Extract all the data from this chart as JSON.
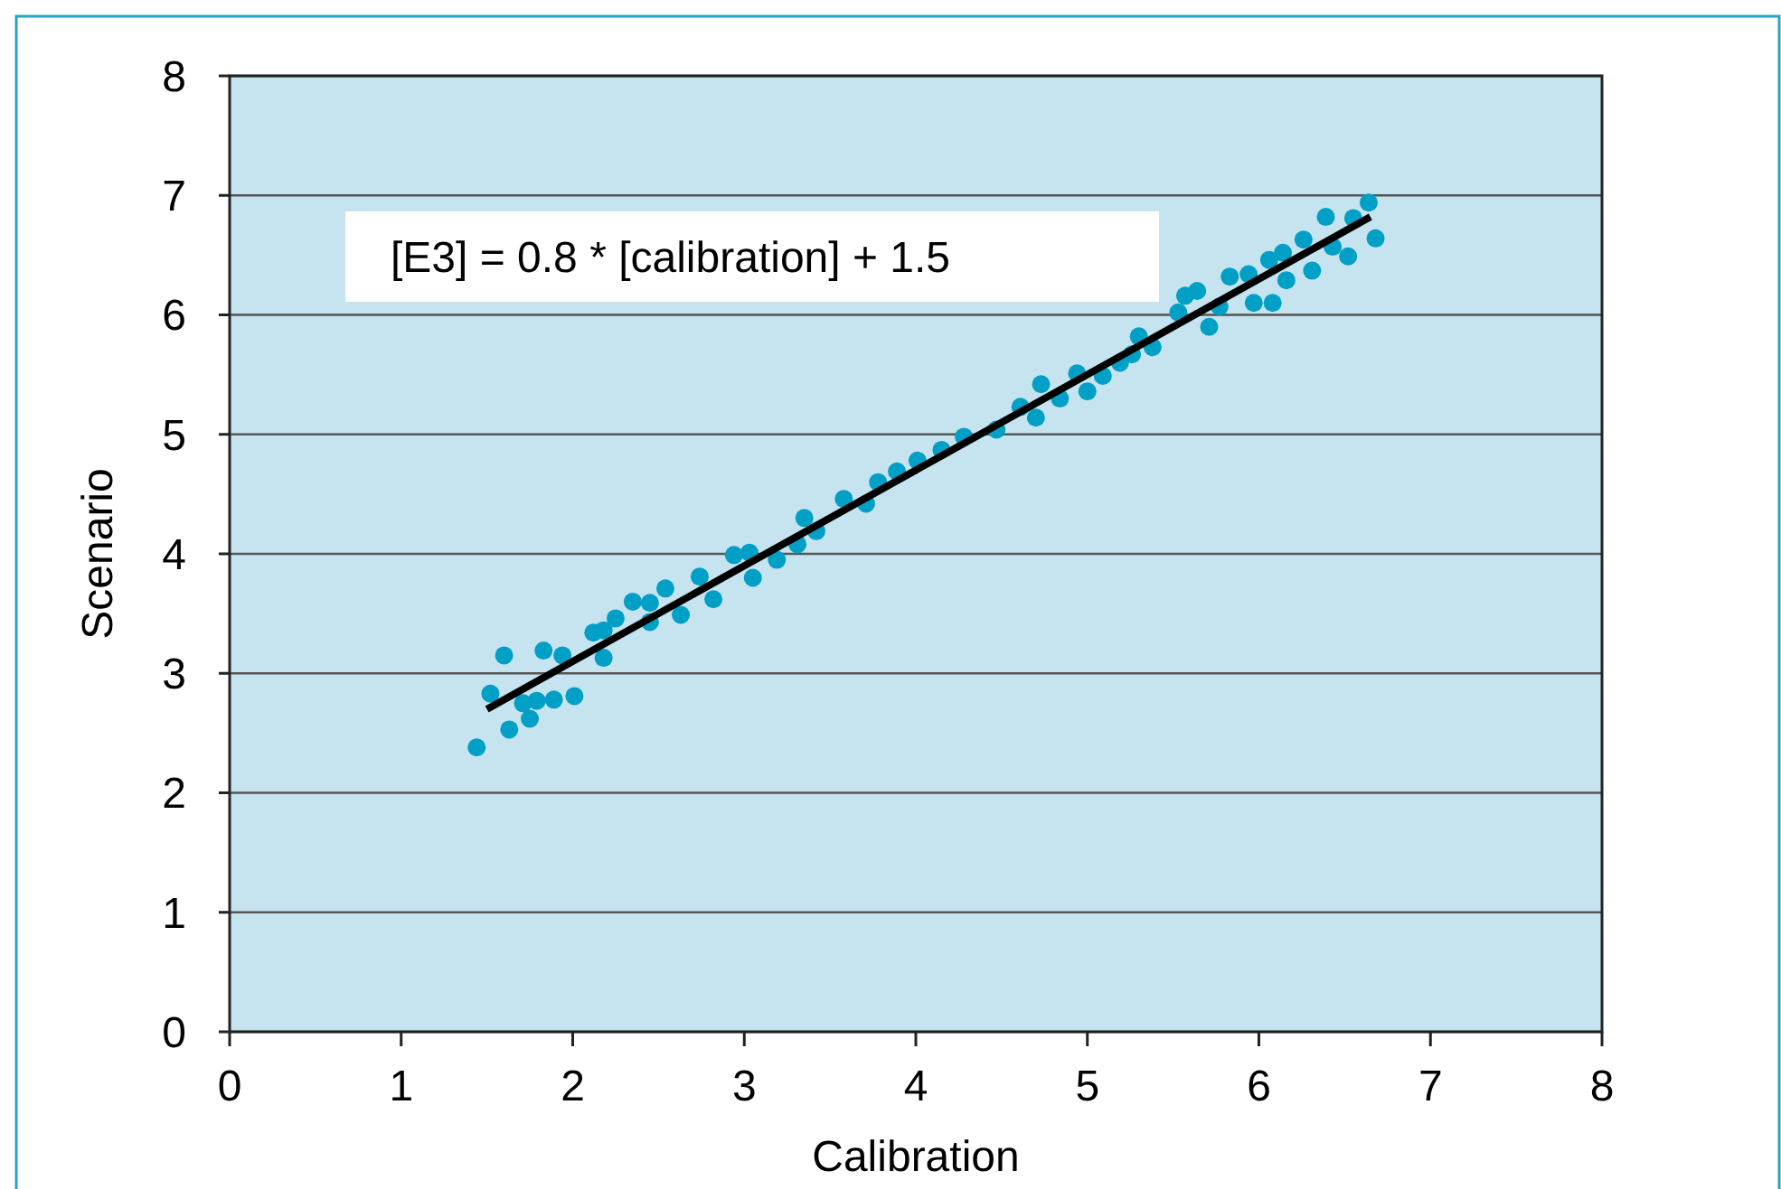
{
  "chart_data": {
    "type": "scatter",
    "xlabel": "Calibration",
    "ylabel": "Scenario",
    "annotations": [
      "[E3] = 0.8 * [calibration] + 1.5"
    ],
    "xlim": [
      0,
      8
    ],
    "xticks": [
      0,
      1,
      2,
      3,
      4,
      5,
      6,
      7,
      8
    ],
    "ylim": [
      0,
      8
    ],
    "yticks": [
      0,
      1,
      2,
      3,
      4,
      5,
      6,
      7,
      8
    ],
    "grid": "y",
    "series": [
      {
        "marker": "circle",
        "color": "#00a0c6",
        "x": [
          1.44,
          1.52,
          1.6,
          1.63,
          1.71,
          1.75,
          1.79,
          1.83,
          1.89,
          1.94,
          2.01,
          2.12,
          2.18,
          2.18,
          2.25,
          2.35,
          2.45,
          2.45,
          2.54,
          2.63,
          2.74,
          2.82,
          2.94,
          3.03,
          3.05,
          3.19,
          3.31,
          3.35,
          3.42,
          3.58,
          3.71,
          3.78,
          3.89,
          4.01,
          4.15,
          4.28,
          4.47,
          4.61,
          4.7,
          4.73,
          4.84,
          4.94,
          5.0,
          5.09,
          5.19,
          5.26,
          5.3,
          5.38,
          5.53,
          5.57,
          5.64,
          5.71,
          5.77,
          5.83,
          5.94,
          5.97,
          6.06,
          6.08,
          6.14,
          6.16,
          6.26,
          6.31,
          6.39,
          6.43,
          6.52,
          6.55,
          6.64,
          6.68
        ],
        "values": [
          2.38,
          2.83,
          3.15,
          2.53,
          2.75,
          2.62,
          2.77,
          3.19,
          2.78,
          3.15,
          2.81,
          3.34,
          3.36,
          3.13,
          3.46,
          3.6,
          3.59,
          3.43,
          3.71,
          3.49,
          3.81,
          3.62,
          3.99,
          4.01,
          3.8,
          3.95,
          4.08,
          4.3,
          4.19,
          4.46,
          4.42,
          4.6,
          4.69,
          4.78,
          4.87,
          4.98,
          5.04,
          5.23,
          5.14,
          5.42,
          5.3,
          5.51,
          5.36,
          5.49,
          5.6,
          5.67,
          5.82,
          5.73,
          6.02,
          6.16,
          6.2,
          5.9,
          6.07,
          6.32,
          6.34,
          6.1,
          6.46,
          6.1,
          6.52,
          6.29,
          6.63,
          6.37,
          6.82,
          6.57,
          6.49,
          6.81,
          6.94,
          6.64
        ]
      },
      {
        "type": "line",
        "color": "#000000",
        "x": [
          1.5,
          6.65
        ],
        "values": [
          2.7,
          6.82
        ]
      }
    ]
  }
}
